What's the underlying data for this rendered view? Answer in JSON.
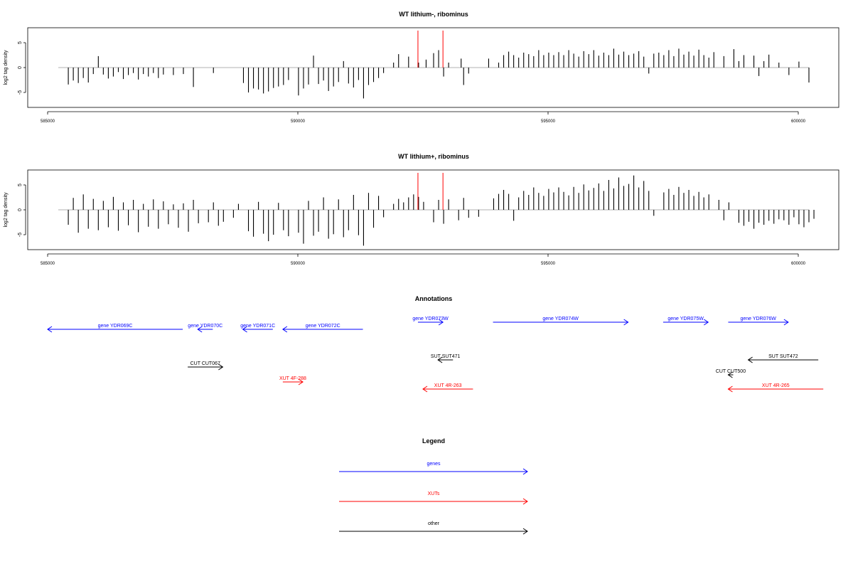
{
  "chart_data": [
    {
      "type": "bar",
      "title": "WT lithium-, ribominus",
      "xlabel": "",
      "ylabel": "log2 tag density",
      "xlim": [
        585000,
        600000
      ],
      "ylim": [
        -8,
        8
      ],
      "xticks": [
        "585000",
        "590000",
        "595000",
        "600000"
      ],
      "yticks": [
        "-5",
        "0",
        "5"
      ],
      "bar_color": "#000000",
      "marker_color": "#ff0000",
      "markers_x": [
        592400,
        592900
      ],
      "bars": [
        [
          585200,
          -3.4
        ],
        [
          585300,
          -2.6
        ],
        [
          585400,
          -3.1
        ],
        [
          585500,
          -2.1
        ],
        [
          585600,
          -3.0
        ],
        [
          585700,
          -1.3
        ],
        [
          585800,
          2.3
        ],
        [
          585900,
          -1.4
        ],
        [
          586000,
          -2.2
        ],
        [
          586100,
          -1.8
        ],
        [
          586200,
          -0.9
        ],
        [
          586300,
          -2.3
        ],
        [
          586400,
          -1.5
        ],
        [
          586500,
          -1.1
        ],
        [
          586600,
          -2.4
        ],
        [
          586700,
          -1.3
        ],
        [
          586800,
          -1.8
        ],
        [
          586900,
          -1.1
        ],
        [
          587000,
          -2.1
        ],
        [
          587100,
          -1.4
        ],
        [
          587300,
          -1.5
        ],
        [
          587500,
          -1.3
        ],
        [
          587700,
          -3.9
        ],
        [
          588100,
          -1.1
        ],
        [
          588700,
          -3.1
        ],
        [
          588800,
          -5.0
        ],
        [
          588900,
          -4.2
        ],
        [
          589000,
          -4.4
        ],
        [
          589100,
          -5.2
        ],
        [
          589200,
          -4.8
        ],
        [
          589300,
          -4.1
        ],
        [
          589400,
          -3.8
        ],
        [
          589500,
          -3.5
        ],
        [
          589600,
          -2.5
        ],
        [
          589800,
          -5.6
        ],
        [
          589900,
          -4.2
        ],
        [
          590000,
          -3.4
        ],
        [
          590100,
          2.4
        ],
        [
          590200,
          -3.3
        ],
        [
          590300,
          -2.6
        ],
        [
          590400,
          -4.7
        ],
        [
          590500,
          -3.8
        ],
        [
          590600,
          -2.9
        ],
        [
          590700,
          1.3
        ],
        [
          590800,
          -3.2
        ],
        [
          590900,
          -4.0
        ],
        [
          591000,
          -2.5
        ],
        [
          591100,
          -6.2
        ],
        [
          591200,
          -3.5
        ],
        [
          591300,
          -2.9
        ],
        [
          591400,
          -2.1
        ],
        [
          591500,
          -1.1
        ],
        [
          591700,
          1.0
        ],
        [
          591800,
          2.7
        ],
        [
          592000,
          2.2
        ],
        [
          592200,
          1.0
        ],
        [
          592350,
          1.6
        ],
        [
          592500,
          2.9
        ],
        [
          592600,
          3.5
        ],
        [
          592700,
          -1.8
        ],
        [
          592800,
          1.0
        ],
        [
          593050,
          1.8
        ],
        [
          593100,
          -3.5
        ],
        [
          593200,
          -1.2
        ],
        [
          593600,
          1.8
        ],
        [
          593800,
          1.0
        ],
        [
          593900,
          2.5
        ],
        [
          594000,
          3.2
        ],
        [
          594100,
          2.5
        ],
        [
          594200,
          2.0
        ],
        [
          594300,
          3.0
        ],
        [
          594400,
          2.7
        ],
        [
          594500,
          2.3
        ],
        [
          594600,
          3.5
        ],
        [
          594700,
          2.5
        ],
        [
          594800,
          3.0
        ],
        [
          594900,
          2.5
        ],
        [
          595000,
          3.1
        ],
        [
          595100,
          2.5
        ],
        [
          595200,
          3.5
        ],
        [
          595300,
          2.8
        ],
        [
          595400,
          2.2
        ],
        [
          595500,
          3.3
        ],
        [
          595600,
          2.7
        ],
        [
          595700,
          3.5
        ],
        [
          595800,
          2.4
        ],
        [
          595900,
          3.0
        ],
        [
          596000,
          2.5
        ],
        [
          596100,
          3.8
        ],
        [
          596200,
          2.6
        ],
        [
          596300,
          3.2
        ],
        [
          596400,
          2.5
        ],
        [
          596500,
          2.8
        ],
        [
          596600,
          3.3
        ],
        [
          596700,
          2.2
        ],
        [
          596800,
          -1.2
        ],
        [
          596900,
          2.8
        ],
        [
          597000,
          3.0
        ],
        [
          597100,
          2.5
        ],
        [
          597200,
          3.5
        ],
        [
          597300,
          2.3
        ],
        [
          597400,
          3.8
        ],
        [
          597500,
          2.6
        ],
        [
          597600,
          3.2
        ],
        [
          597700,
          2.4
        ],
        [
          597800,
          3.6
        ],
        [
          597900,
          2.5
        ],
        [
          598000,
          2.0
        ],
        [
          598100,
          3.1
        ],
        [
          598300,
          2.3
        ],
        [
          598500,
          3.7
        ],
        [
          598600,
          1.3
        ],
        [
          598700,
          2.5
        ],
        [
          598900,
          2.4
        ],
        [
          599000,
          -1.7
        ],
        [
          599100,
          1.3
        ],
        [
          599200,
          2.6
        ],
        [
          599400,
          1.0
        ],
        [
          599600,
          -1.5
        ],
        [
          599800,
          1.2
        ],
        [
          600000,
          -3.0
        ]
      ]
    },
    {
      "type": "bar",
      "title": "WT lithium+, ribominus",
      "xlabel": "",
      "ylabel": "log2 tag density",
      "xlim": [
        585000,
        600000
      ],
      "ylim": [
        -8,
        8
      ],
      "xticks": [
        "585000",
        "590000",
        "595000",
        "600000"
      ],
      "yticks": [
        "-5",
        "0",
        "5"
      ],
      "bar_color": "#000000",
      "marker_color": "#ff0000",
      "markers_x": [
        592400,
        592900
      ],
      "bars": [
        [
          585200,
          -3.0
        ],
        [
          585300,
          2.4
        ],
        [
          585400,
          -4.6
        ],
        [
          585500,
          3.1
        ],
        [
          585600,
          -3.8
        ],
        [
          585700,
          2.2
        ],
        [
          585800,
          -4.1
        ],
        [
          585900,
          1.8
        ],
        [
          586000,
          -3.5
        ],
        [
          586100,
          2.6
        ],
        [
          586200,
          -4.2
        ],
        [
          586300,
          1.5
        ],
        [
          586400,
          -3.1
        ],
        [
          586500,
          2.0
        ],
        [
          586600,
          -4.5
        ],
        [
          586700,
          1.2
        ],
        [
          586800,
          -3.4
        ],
        [
          586900,
          2.1
        ],
        [
          587000,
          -3.8
        ],
        [
          587100,
          1.7
        ],
        [
          587200,
          -2.9
        ],
        [
          587300,
          1.1
        ],
        [
          587400,
          -3.6
        ],
        [
          587500,
          1.3
        ],
        [
          587600,
          -4.4
        ],
        [
          587700,
          2.0
        ],
        [
          587800,
          -2.7
        ],
        [
          588000,
          -2.5
        ],
        [
          588100,
          1.5
        ],
        [
          588200,
          -3.2
        ],
        [
          588300,
          -2.4
        ],
        [
          588500,
          -1.6
        ],
        [
          588600,
          1.2
        ],
        [
          588800,
          -4.3
        ],
        [
          588900,
          -5.4
        ],
        [
          589000,
          1.6
        ],
        [
          589100,
          -4.8
        ],
        [
          589200,
          -6.3
        ],
        [
          589300,
          -5.0
        ],
        [
          589400,
          1.4
        ],
        [
          589500,
          -4.1
        ],
        [
          589600,
          -5.3
        ],
        [
          589800,
          -4.6
        ],
        [
          589900,
          -6.8
        ],
        [
          590000,
          1.8
        ],
        [
          590100,
          -5.2
        ],
        [
          590200,
          -4.4
        ],
        [
          590300,
          2.5
        ],
        [
          590400,
          -5.8
        ],
        [
          590500,
          -4.9
        ],
        [
          590600,
          2.1
        ],
        [
          590700,
          -5.5
        ],
        [
          590800,
          -4.1
        ],
        [
          590900,
          3.0
        ],
        [
          591000,
          -5.1
        ],
        [
          591100,
          -7.2
        ],
        [
          591200,
          3.4
        ],
        [
          591300,
          -3.6
        ],
        [
          591400,
          2.8
        ],
        [
          591500,
          -1.5
        ],
        [
          591700,
          1.2
        ],
        [
          591800,
          2.2
        ],
        [
          591900,
          1.5
        ],
        [
          592000,
          2.5
        ],
        [
          592100,
          3.1
        ],
        [
          592200,
          2.6
        ],
        [
          592300,
          1.6
        ],
        [
          592500,
          -2.5
        ],
        [
          592600,
          2.0
        ],
        [
          592700,
          -2.8
        ],
        [
          592800,
          2.1
        ],
        [
          593000,
          -2.1
        ],
        [
          593100,
          2.4
        ],
        [
          593200,
          -1.6
        ],
        [
          593400,
          -1.4
        ],
        [
          593700,
          2.3
        ],
        [
          593800,
          3.2
        ],
        [
          593900,
          4.0
        ],
        [
          594000,
          3.2
        ],
        [
          594100,
          -2.2
        ],
        [
          594200,
          2.5
        ],
        [
          594300,
          3.8
        ],
        [
          594400,
          3.0
        ],
        [
          594500,
          4.5
        ],
        [
          594600,
          3.4
        ],
        [
          594700,
          2.8
        ],
        [
          594800,
          4.2
        ],
        [
          594900,
          3.5
        ],
        [
          595000,
          4.5
        ],
        [
          595100,
          3.6
        ],
        [
          595200,
          2.9
        ],
        [
          595300,
          4.6
        ],
        [
          595400,
          3.4
        ],
        [
          595500,
          5.1
        ],
        [
          595600,
          3.9
        ],
        [
          595700,
          4.4
        ],
        [
          595800,
          5.3
        ],
        [
          595900,
          3.8
        ],
        [
          596000,
          6.0
        ],
        [
          596100,
          4.3
        ],
        [
          596200,
          6.5
        ],
        [
          596300,
          4.8
        ],
        [
          596400,
          5.2
        ],
        [
          596500,
          6.9
        ],
        [
          596600,
          4.5
        ],
        [
          596700,
          5.8
        ],
        [
          596800,
          3.8
        ],
        [
          596900,
          -1.2
        ],
        [
          597100,
          3.5
        ],
        [
          597200,
          4.2
        ],
        [
          597300,
          3.0
        ],
        [
          597400,
          4.6
        ],
        [
          597500,
          3.4
        ],
        [
          597600,
          4.0
        ],
        [
          597700,
          2.8
        ],
        [
          597800,
          3.6
        ],
        [
          597900,
          2.5
        ],
        [
          598000,
          3.1
        ],
        [
          598200,
          2.0
        ],
        [
          598300,
          -2.1
        ],
        [
          598400,
          1.5
        ],
        [
          598600,
          -2.6
        ],
        [
          598700,
          -3.2
        ],
        [
          598800,
          -2.4
        ],
        [
          598900,
          -3.8
        ],
        [
          599000,
          -2.6
        ],
        [
          599100,
          -3.0
        ],
        [
          599200,
          -2.2
        ],
        [
          599300,
          -2.8
        ],
        [
          599400,
          -1.9
        ],
        [
          599500,
          -2.1
        ],
        [
          599600,
          -3.0
        ],
        [
          599700,
          -1.5
        ],
        [
          599800,
          -2.9
        ],
        [
          599900,
          -3.5
        ],
        [
          600000,
          -2.5
        ],
        [
          600100,
          -1.8
        ]
      ]
    },
    {
      "type": "table",
      "title": "Annotations",
      "xlim": [
        585000,
        600000
      ],
      "colors": {
        "genes": "#0000ff",
        "XUTs": "#ff0000",
        "other": "#000000"
      },
      "features": [
        {
          "label": "gene YDR069C",
          "category": "genes",
          "strand": "-",
          "start": 585000,
          "end": 587700,
          "lane": 1
        },
        {
          "label": "gene YDR070C",
          "category": "genes",
          "strand": "-",
          "start": 588000,
          "end": 588300,
          "lane": 1
        },
        {
          "label": "gene YDR071C",
          "category": "genes",
          "strand": "-",
          "start": 588900,
          "end": 589500,
          "lane": 1
        },
        {
          "label": "gene YDR072C",
          "category": "genes",
          "strand": "-",
          "start": 589700,
          "end": 591300,
          "lane": 1
        },
        {
          "label": "gene YDR073W",
          "category": "genes",
          "strand": "+",
          "start": 592400,
          "end": 592900,
          "lane": 0
        },
        {
          "label": "gene YDR074W",
          "category": "genes",
          "strand": "+",
          "start": 593900,
          "end": 596600,
          "lane": 0
        },
        {
          "label": "gene YDR075W",
          "category": "genes",
          "strand": "+",
          "start": 597300,
          "end": 598200,
          "lane": 0
        },
        {
          "label": "gene YDR076W",
          "category": "genes",
          "strand": "+",
          "start": 598600,
          "end": 599800,
          "lane": 0
        },
        {
          "label": "CUT CUT067",
          "category": "other",
          "strand": "+",
          "start": 587800,
          "end": 588500,
          "lane": 3
        },
        {
          "label": "SUT SUT471",
          "category": "other",
          "strand": "-",
          "start": 592800,
          "end": 593100,
          "lane": 2
        },
        {
          "label": "SUT SUT472",
          "category": "other",
          "strand": "-",
          "start": 599000,
          "end": 600400,
          "lane": 2
        },
        {
          "label": "CUT CUT500",
          "category": "other",
          "strand": "-",
          "start": 598600,
          "end": 598700,
          "lane": 4
        },
        {
          "label": "XUT 4F-288",
          "category": "XUTs",
          "strand": "+",
          "start": 589700,
          "end": 590100,
          "lane": 3.5
        },
        {
          "label": "XUT 4R-263",
          "category": "XUTs",
          "strand": "-",
          "start": 592500,
          "end": 593500,
          "lane": 5
        },
        {
          "label": "XUT 4R-265",
          "category": "XUTs",
          "strand": "-",
          "start": 598600,
          "end": 600500,
          "lane": 5
        }
      ]
    },
    {
      "type": "table",
      "title": "Legend",
      "entries": [
        {
          "label": "genes",
          "color": "#0000ff"
        },
        {
          "label": "XUTs",
          "color": "#ff0000"
        },
        {
          "label": "other",
          "color": "#000000"
        }
      ]
    }
  ]
}
